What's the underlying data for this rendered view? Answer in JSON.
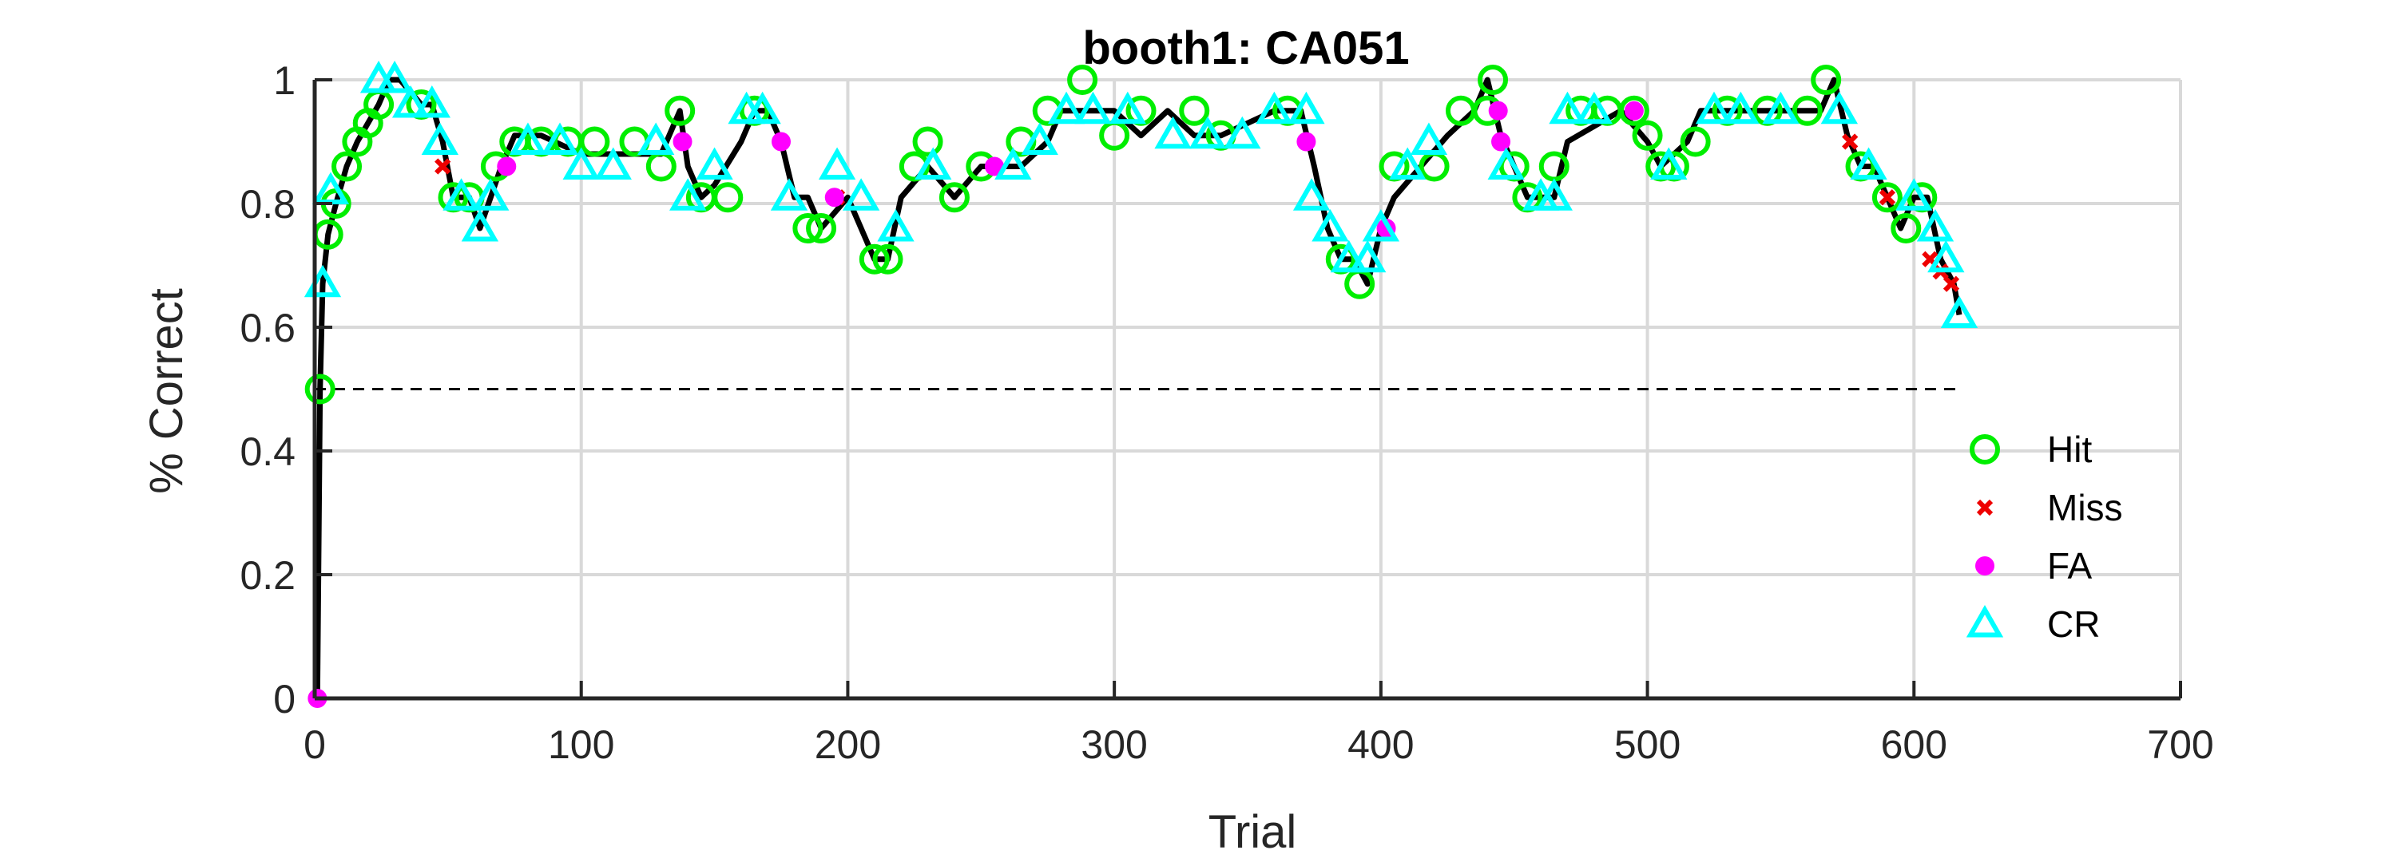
{
  "chart_data": {
    "type": "scatter",
    "title": "booth1: CA051",
    "xlabel": "Trial",
    "ylabel": "% Correct",
    "xlim": [
      0,
      700
    ],
    "ylim": [
      0,
      1
    ],
    "xticks": [
      0,
      100,
      200,
      300,
      400,
      500,
      600,
      700
    ],
    "yticks": [
      0,
      0.2,
      0.4,
      0.6,
      0.8,
      1
    ],
    "xtick_labels": [
      "0",
      "100",
      "200",
      "300",
      "400",
      "500",
      "600",
      "700"
    ],
    "ytick_labels": [
      "0",
      "0.2",
      "0.4",
      "0.6",
      "0.8",
      "1"
    ],
    "grid": true,
    "legend_position": "right",
    "reference_line": {
      "y": 0.5,
      "x_range": [
        0,
        617
      ],
      "style": "dashed"
    },
    "colors": {
      "hit": "#00ee00",
      "miss": "#ee0000",
      "fa": "#ff00ff",
      "cr": "#00ffff",
      "line": "#000000"
    },
    "legend": [
      "Hit",
      "Miss",
      "FA",
      "CR"
    ],
    "performance_curve": {
      "x": [
        1,
        2,
        3,
        5,
        8,
        12,
        16,
        20,
        24,
        28,
        32,
        40,
        44,
        48,
        52,
        58,
        62,
        66,
        70,
        75,
        85,
        100,
        115,
        130,
        137,
        140,
        145,
        150,
        160,
        165,
        170,
        175,
        180,
        185,
        190,
        200,
        205,
        210,
        215,
        220,
        230,
        240,
        250,
        265,
        275,
        280,
        290,
        300,
        310,
        320,
        330,
        340,
        360,
        370,
        375,
        380,
        385,
        390,
        395,
        400,
        405,
        415,
        425,
        435,
        440,
        445,
        450,
        455,
        465,
        470,
        490,
        500,
        505,
        515,
        520,
        545,
        565,
        570,
        575,
        580,
        585,
        590,
        595,
        600,
        605,
        610,
        615,
        617
      ],
      "y": [
        0.0,
        0.5,
        0.67,
        0.75,
        0.8,
        0.86,
        0.9,
        0.93,
        0.96,
        1.0,
        1.0,
        0.96,
        0.96,
        0.9,
        0.81,
        0.81,
        0.76,
        0.81,
        0.86,
        0.91,
        0.91,
        0.88,
        0.88,
        0.88,
        0.95,
        0.86,
        0.81,
        0.83,
        0.9,
        0.95,
        0.95,
        0.9,
        0.81,
        0.81,
        0.76,
        0.81,
        0.76,
        0.71,
        0.71,
        0.81,
        0.86,
        0.81,
        0.86,
        0.86,
        0.9,
        0.95,
        0.95,
        0.95,
        0.91,
        0.95,
        0.91,
        0.91,
        0.95,
        0.95,
        0.86,
        0.76,
        0.71,
        0.71,
        0.67,
        0.76,
        0.81,
        0.86,
        0.91,
        0.95,
        1.0,
        0.91,
        0.86,
        0.81,
        0.81,
        0.9,
        0.95,
        0.9,
        0.86,
        0.9,
        0.95,
        0.95,
        0.95,
        1.0,
        0.91,
        0.86,
        0.86,
        0.81,
        0.76,
        0.81,
        0.81,
        0.71,
        0.67,
        0.62
      ]
    },
    "series": [
      {
        "name": "Hit",
        "marker": "circle",
        "x": [
          2,
          5,
          8,
          12,
          16,
          20,
          24,
          40,
          52,
          58,
          68,
          75,
          85,
          95,
          105,
          120,
          130,
          137,
          145,
          155,
          165,
          185,
          190,
          210,
          215,
          225,
          230,
          240,
          250,
          265,
          275,
          288,
          300,
          310,
          330,
          340,
          365,
          385,
          392,
          405,
          420,
          430,
          440,
          442,
          450,
          455,
          465,
          475,
          485,
          495,
          500,
          505,
          510,
          518,
          530,
          545,
          560,
          567,
          580,
          590,
          597,
          603
        ],
        "y": [
          0.5,
          0.75,
          0.8,
          0.86,
          0.9,
          0.93,
          0.96,
          0.96,
          0.81,
          0.81,
          0.86,
          0.9,
          0.9,
          0.9,
          0.9,
          0.9,
          0.86,
          0.95,
          0.81,
          0.81,
          0.95,
          0.76,
          0.76,
          0.71,
          0.71,
          0.86,
          0.9,
          0.81,
          0.86,
          0.9,
          0.95,
          1.0,
          0.91,
          0.95,
          0.95,
          0.91,
          0.95,
          0.71,
          0.67,
          0.86,
          0.86,
          0.95,
          0.95,
          1.0,
          0.86,
          0.81,
          0.86,
          0.95,
          0.95,
          0.95,
          0.91,
          0.86,
          0.86,
          0.9,
          0.95,
          0.95,
          0.95,
          1.0,
          0.86,
          0.81,
          0.76,
          0.81
        ]
      },
      {
        "name": "Miss",
        "marker": "x",
        "x": [
          48,
          196,
          576,
          590,
          606,
          610,
          614
        ],
        "y": [
          0.86,
          0.81,
          0.9,
          0.81,
          0.71,
          0.69,
          0.67
        ]
      },
      {
        "name": "FA",
        "marker": "dot",
        "x": [
          1,
          72,
          138,
          175,
          195,
          255,
          372,
          402,
          444,
          445,
          495
        ],
        "y": [
          0.0,
          0.86,
          0.9,
          0.9,
          0.81,
          0.86,
          0.9,
          0.76,
          0.95,
          0.9,
          0.95
        ]
      },
      {
        "name": "CR",
        "marker": "triangle",
        "x": [
          3,
          6,
          24,
          30,
          36,
          44,
          47,
          55,
          62,
          66,
          80,
          92,
          100,
          112,
          128,
          140,
          150,
          162,
          168,
          178,
          196,
          205,
          218,
          232,
          262,
          272,
          282,
          292,
          305,
          322,
          335,
          348,
          360,
          372,
          374,
          381,
          388,
          395,
          400,
          410,
          418,
          447,
          460,
          465,
          470,
          480,
          508,
          525,
          535,
          550,
          572,
          583,
          600,
          608,
          612,
          617
        ],
        "y": [
          0.67,
          0.82,
          1.0,
          1.0,
          0.96,
          0.96,
          0.9,
          0.81,
          0.76,
          0.81,
          0.9,
          0.9,
          0.86,
          0.86,
          0.9,
          0.81,
          0.86,
          0.95,
          0.95,
          0.81,
          0.86,
          0.81,
          0.76,
          0.86,
          0.86,
          0.9,
          0.95,
          0.95,
          0.95,
          0.91,
          0.91,
          0.91,
          0.95,
          0.95,
          0.81,
          0.76,
          0.71,
          0.71,
          0.76,
          0.86,
          0.9,
          0.86,
          0.81,
          0.81,
          0.95,
          0.95,
          0.86,
          0.95,
          0.95,
          0.95,
          0.95,
          0.86,
          0.81,
          0.76,
          0.71,
          0.62
        ]
      }
    ]
  }
}
